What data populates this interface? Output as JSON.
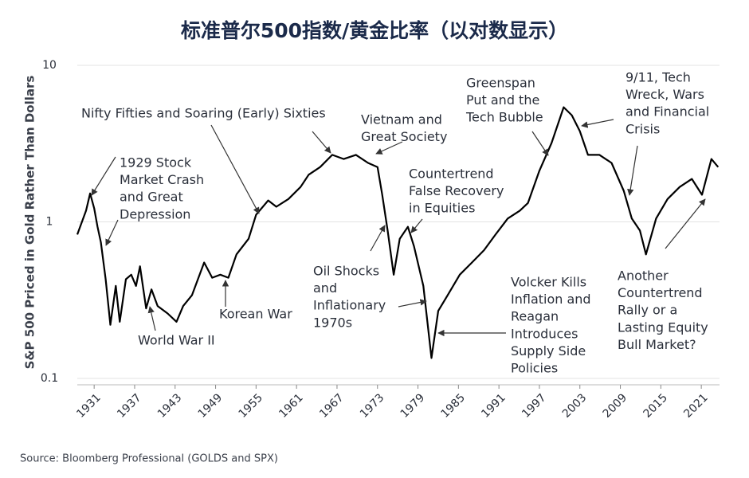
{
  "chart_data": {
    "type": "line",
    "title": "标准普尔500指数/黄金比率（以对数显示）",
    "y_label": "S&P 500 Priced in Gold Rather Than Dollars",
    "source": "Source: Bloomberg Professional (GOLDS and SPX)",
    "log_scale_y": true,
    "grid": true,
    "color": "#000000",
    "xlim": [
      1928.5,
      2023.7
    ],
    "xticks": [
      1931,
      1937,
      1943,
      1949,
      1955,
      1961,
      1967,
      1973,
      1979,
      1985,
      1991,
      1997,
      2003,
      2009,
      2015,
      2021
    ],
    "ylim": [
      0.1,
      10
    ],
    "yticks": [
      0.1,
      1,
      10
    ],
    "x": [
      1928.5,
      1929.8,
      1930.4,
      1931,
      1931.5,
      1932,
      1932.7,
      1933.4,
      1934.2,
      1934.8,
      1935.7,
      1936.5,
      1937.2,
      1937.8,
      1938.7,
      1939.5,
      1940.4,
      1941.9,
      1943.2,
      1944.2,
      1945.5,
      1947.3,
      1948.5,
      1949.7,
      1950.9,
      1952.1,
      1953.9,
      1955,
      1956.8,
      1958,
      1959.8,
      1961.6,
      1962.8,
      1964.5,
      1966.3,
      1968,
      1969.8,
      1971.6,
      1973,
      1973.7,
      1974.5,
      1975.4,
      1976.3,
      1977.5,
      1978.4,
      1979.8,
      1981,
      1982,
      1983.4,
      1985.2,
      1987,
      1988.8,
      1990.5,
      1992.3,
      1994.1,
      1995.3,
      1997,
      1998.8,
      2000.6,
      2001.8,
      2003,
      2004.2,
      2005.9,
      2007.7,
      2009.5,
      2010.7,
      2011.9,
      2012.8,
      2014.3,
      2016,
      2017.8,
      2019.6,
      2021.1,
      2022.5,
      2023.5
    ],
    "values": [
      0.83,
      1.18,
      1.52,
      1.22,
      0.93,
      0.74,
      0.43,
      0.22,
      0.39,
      0.23,
      0.43,
      0.46,
      0.39,
      0.52,
      0.28,
      0.37,
      0.29,
      0.26,
      0.23,
      0.29,
      0.34,
      0.55,
      0.44,
      0.46,
      0.44,
      0.62,
      0.78,
      1.11,
      1.37,
      1.25,
      1.4,
      1.67,
      2.0,
      2.24,
      2.68,
      2.52,
      2.68,
      2.38,
      2.24,
      1.49,
      0.88,
      0.46,
      0.78,
      0.93,
      0.7,
      0.39,
      0.135,
      0.27,
      0.34,
      0.46,
      0.55,
      0.66,
      0.83,
      1.05,
      1.18,
      1.32,
      2.12,
      3.19,
      5.4,
      4.8,
      3.8,
      2.68,
      2.68,
      2.38,
      1.58,
      1.05,
      0.88,
      0.62,
      1.05,
      1.4,
      1.67,
      1.88,
      1.49,
      2.52,
      2.24
    ],
    "annotations": [
      [
        "1929 Stock",
        "Market Crash",
        "and Great",
        "Depression"
      ],
      [
        "Nifty Fifties and Soaring (Early) Sixties"
      ],
      [
        "Korean War"
      ],
      [
        "World War II"
      ],
      [
        "Vietnam and",
        "Great Society"
      ],
      [
        "Countertrend",
        "False Recovery",
        "in Equities"
      ],
      [
        "Oil Shocks",
        "and",
        "Inflationary",
        "1970s"
      ],
      [
        "Volcker Kills",
        "Inflation and",
        "Reagan",
        "Introduces",
        "Supply Side",
        "Policies"
      ],
      [
        "Greenspan",
        "Put and the",
        "Tech Bubble"
      ],
      [
        "9/11, Tech",
        "Wreck, Wars",
        "and Financial",
        "Crisis"
      ],
      [
        "Another",
        "Countertrend",
        "Rally or a",
        "Lasting Equity",
        "Bull Market?"
      ]
    ]
  }
}
